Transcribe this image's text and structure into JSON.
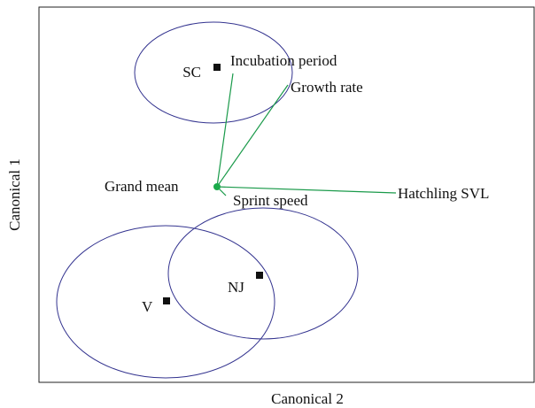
{
  "x_label": "Canonical 2",
  "y_label": "Canonical 1",
  "groups": [
    "SC",
    "NJ",
    "V"
  ],
  "center": "Grand mean",
  "vectors": [
    "Incubation period",
    "Growth rate",
    "Hatchling SVL",
    "Sprint speed"
  ]
}
